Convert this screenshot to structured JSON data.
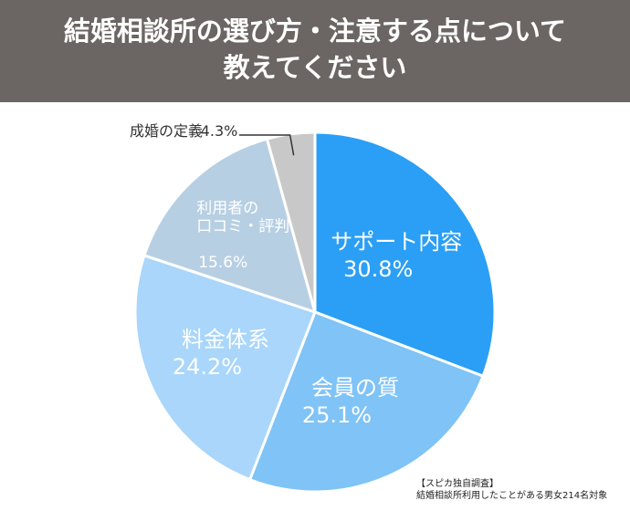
{
  "chart_data": {
    "type": "pie",
    "title": [
      "結婚相談所の選び方・注意する点について",
      "教えてください"
    ],
    "categories": [
      "サポート内容",
      "会員の質",
      "料金体系",
      "利用者の\n口コミ・評判",
      "成婚の定義"
    ],
    "values": [
      30.8,
      25.1,
      24.2,
      15.6,
      4.3
    ],
    "value_labels": [
      "30.8%",
      "25.1%",
      "24.2%",
      "15.6%",
      "4.3%"
    ],
    "colors": [
      "#2b9ff5",
      "#7fc3f7",
      "#a9d6fa",
      "#b7cfe3",
      "#c8c8c8"
    ],
    "source": [
      "【スピカ独自調査】",
      "結婚相談所利用したことがある男女214名対象"
    ]
  }
}
